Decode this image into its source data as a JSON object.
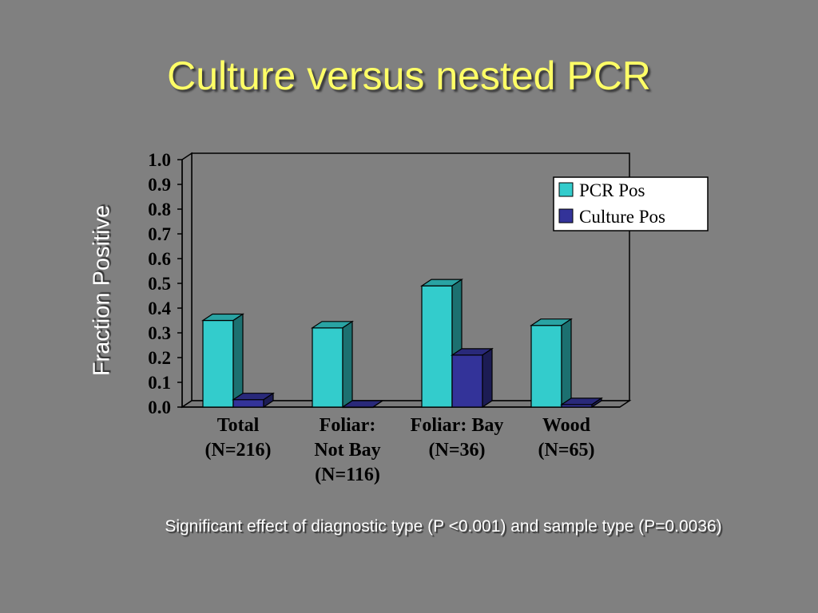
{
  "slide": {
    "title": "Culture versus nested PCR",
    "footnote": "Significant effect of diagnostic type (P <0.001) and sample type (P=0.0036)"
  },
  "chart_data": {
    "type": "bar",
    "ylabel": "Fraction Positive",
    "ylim": [
      0,
      1.0
    ],
    "yticks": [
      "0.0",
      "0.1",
      "0.2",
      "0.3",
      "0.4",
      "0.5",
      "0.6",
      "0.7",
      "0.8",
      "0.9",
      "1.0"
    ],
    "categories": [
      [
        "Total",
        "(N=216)"
      ],
      [
        "Foliar:",
        "Not Bay",
        "(N=116)"
      ],
      [
        "Foliar: Bay",
        "(N=36)"
      ],
      [
        "Wood",
        "(N=65)"
      ]
    ],
    "series": [
      {
        "name": "PCR Pos",
        "values": [
          0.35,
          0.32,
          0.49,
          0.33
        ],
        "color": "#33cccc"
      },
      {
        "name": "Culture Pos",
        "values": [
          0.03,
          0.0,
          0.21,
          0.01
        ],
        "color": "#333399"
      }
    ],
    "legend_position": "top-right",
    "grid": false,
    "three_d": true
  }
}
